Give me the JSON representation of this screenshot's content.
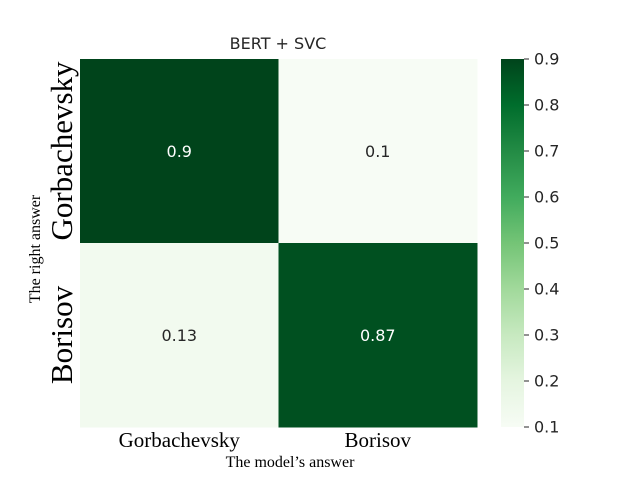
{
  "chart_data": {
    "type": "heatmap",
    "title": "BERT + SVC",
    "xlabel": "The model’s answer",
    "ylabel": "The right answer",
    "x_categories": [
      "Gorbachevsky",
      "Borisov"
    ],
    "y_categories": [
      "Gorbachevsky",
      "Borisov"
    ],
    "values": [
      [
        0.9,
        0.1
      ],
      [
        0.13,
        0.87
      ]
    ],
    "cell_labels": [
      [
        "0.9",
        "0.1"
      ],
      [
        "0.13",
        "0.87"
      ]
    ],
    "colorbar": {
      "min": 0.1,
      "max": 0.9,
      "ticks": [
        "0.1",
        "0.2",
        "0.3",
        "0.4",
        "0.5",
        "0.6",
        "0.7",
        "0.8",
        "0.9"
      ]
    },
    "colormap": [
      "#f7fcf5",
      "#e5f5e0",
      "#c7e9c0",
      "#a1d99b",
      "#74c476",
      "#41ab5d",
      "#238b45",
      "#006d2c",
      "#00441b"
    ]
  }
}
